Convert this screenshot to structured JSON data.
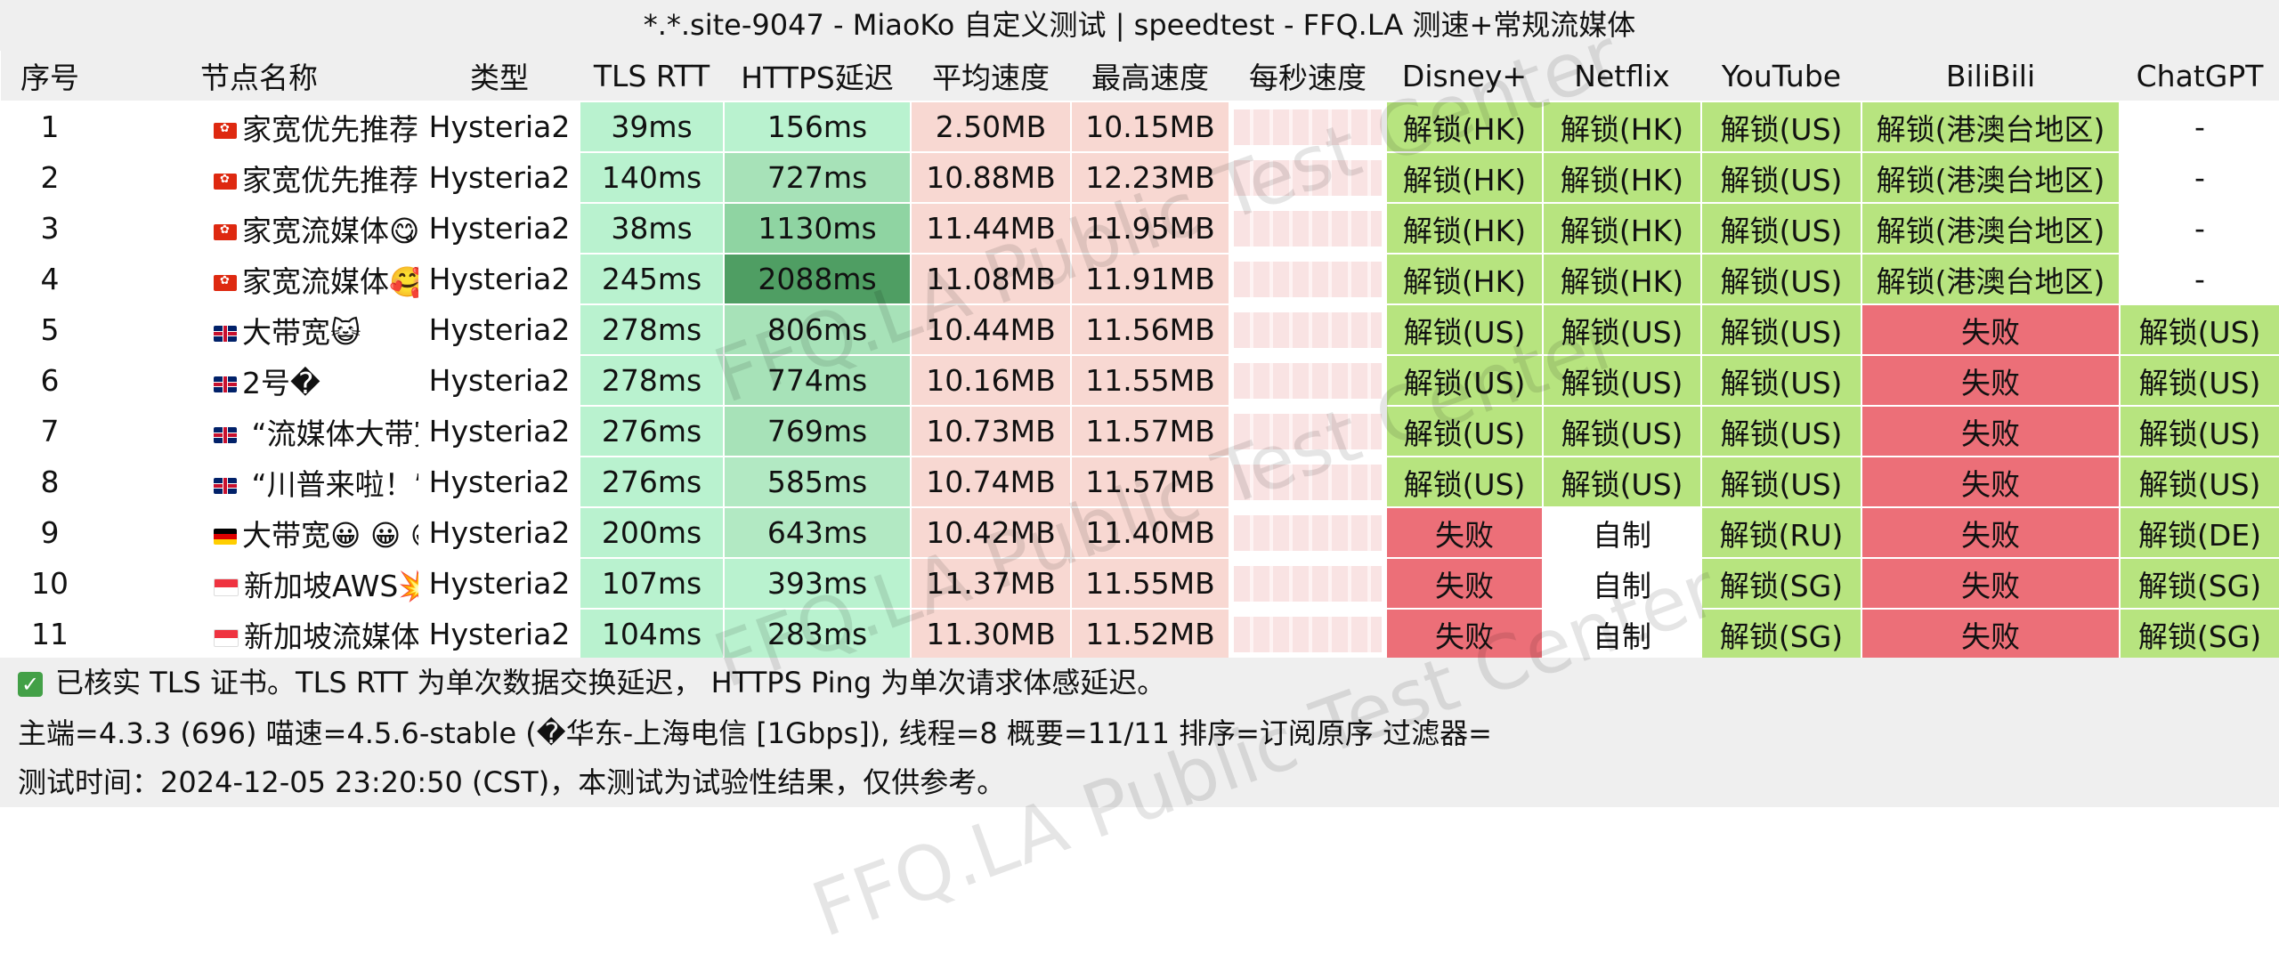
{
  "title": "*.*.site-9047 - MiaoKo 自定义测试 | speedtest - FFQ.LA 测速+常规流媒体",
  "watermark": "FFQ.LA Public Test Center",
  "columns": [
    "序号",
    "节点名称",
    "类型",
    "TLS RTT",
    "HTTPS延迟",
    "平均速度",
    "最高速度",
    "每秒速度",
    "Disney+",
    "Netflix",
    "YouTube",
    "BiliBili",
    "ChatGPT"
  ],
  "colors": {
    "unlock": "#b7e47f",
    "fail": "#ec6f78",
    "neutral": "#ffffff",
    "speed_bg": "#f8d8d2"
  },
  "rows": [
    {
      "idx": "1",
      "flag": "hk",
      "name": "家宽优先推荐😎",
      "type": "Hysteria2",
      "tls": "39ms",
      "https": "156ms",
      "avg": "2.50MB",
      "max": "10.15MB",
      "disney": "解锁(HK)",
      "netflix": "解锁(HK)",
      "youtube": "解锁(US)",
      "bili": "解锁(港澳台地区)",
      "gpt": "-"
    },
    {
      "idx": "2",
      "flag": "hk",
      "name": "家宽优先推荐🥰",
      "type": "Hysteria2",
      "tls": "140ms",
      "https": "727ms",
      "avg": "10.88MB",
      "max": "12.23MB",
      "disney": "解锁(HK)",
      "netflix": "解锁(HK)",
      "youtube": "解锁(US)",
      "bili": "解锁(港澳台地区)",
      "gpt": "-"
    },
    {
      "idx": "3",
      "flag": "hk",
      "name": "家宽流媒体😋",
      "type": "Hysteria2",
      "tls": "38ms",
      "https": "1130ms",
      "avg": "11.44MB",
      "max": "11.95MB",
      "disney": "解锁(HK)",
      "netflix": "解锁(HK)",
      "youtube": "解锁(US)",
      "bili": "解锁(港澳台地区)",
      "gpt": "-"
    },
    {
      "idx": "4",
      "flag": "hk",
      "name": "家宽流媒体🥰",
      "type": "Hysteria2",
      "tls": "245ms",
      "https": "2088ms",
      "avg": "11.08MB",
      "max": "11.91MB",
      "disney": "解锁(HK)",
      "netflix": "解锁(HK)",
      "youtube": "解锁(US)",
      "bili": "解锁(港澳台地区)",
      "gpt": "-"
    },
    {
      "idx": "5",
      "flag": "gb",
      "name": "大带宽😺",
      "type": "Hysteria2",
      "tls": "278ms",
      "https": "806ms",
      "avg": "10.44MB",
      "max": "11.56MB",
      "disney": "解锁(US)",
      "netflix": "解锁(US)",
      "youtube": "解锁(US)",
      "bili": "失败",
      "gpt": "解锁(US)"
    },
    {
      "idx": "6",
      "flag": "gb",
      "name": "2号�",
      "type": "Hysteria2",
      "tls": "278ms",
      "https": "774ms",
      "avg": "10.16MB",
      "max": "11.55MB",
      "disney": "解锁(US)",
      "netflix": "解锁(US)",
      "youtube": "解锁(US)",
      "bili": "失败",
      "gpt": "解锁(US)"
    },
    {
      "idx": "7",
      "flag": "gb",
      "name": " “流媒体大带宽”�",
      "type": "Hysteria2",
      "tls": "276ms",
      "https": "769ms",
      "avg": "10.73MB",
      "max": "11.57MB",
      "disney": "解锁(US)",
      "netflix": "解锁(US)",
      "youtube": "解锁(US)",
      "bili": "失败",
      "gpt": "解锁(US)"
    },
    {
      "idx": "8",
      "flag": "gb",
      "name": " “川普来啦！” 😑",
      "type": "Hysteria2",
      "tls": "276ms",
      "https": "585ms",
      "avg": "10.74MB",
      "max": "11.57MB",
      "disney": "解锁(US)",
      "netflix": "解锁(US)",
      "youtube": "解锁(US)",
      "bili": "失败",
      "gpt": "解锁(US)"
    },
    {
      "idx": "9",
      "flag": "de",
      "name": "大带宽😀 😀 😀",
      "type": "Hysteria2",
      "tls": "200ms",
      "https": "643ms",
      "avg": "10.42MB",
      "max": "11.40MB",
      "disney": "失败",
      "netflix": "自制",
      "youtube": "解锁(RU)",
      "bili": "失败",
      "gpt": "解锁(DE)"
    },
    {
      "idx": "10",
      "flag": "sg",
      "name": "新加坡AWS💥",
      "type": "Hysteria2",
      "tls": "107ms",
      "https": "393ms",
      "avg": "11.37MB",
      "max": "11.55MB",
      "disney": "失败",
      "netflix": "自制",
      "youtube": "解锁(SG)",
      "bili": "失败",
      "gpt": "解锁(SG)"
    },
    {
      "idx": "11",
      "flag": "sg",
      "name": "新加坡流媒体💗",
      "type": "Hysteria2",
      "tls": "104ms",
      "https": "283ms",
      "avg": "11.30MB",
      "max": "11.52MB",
      "disney": "失败",
      "netflix": "自制",
      "youtube": "解锁(SG)",
      "bili": "失败",
      "gpt": "解锁(SG)"
    }
  ],
  "footer": {
    "line1": "已核实 TLS 证书。TLS RTT 为单次数据交换延迟， HTTPS Ping 为单次请求体感延迟。",
    "line2": "主端=4.3.3 (696) 喵速=4.5.6-stable (�华东-上海电信 [1Gbps]), 线程=8 概要=11/11 排序=订阅原序 过滤器=",
    "line3": "测试时间：2024-12-05 23:20:50 (CST)，本测试为试验性结果，仅供参考。"
  }
}
